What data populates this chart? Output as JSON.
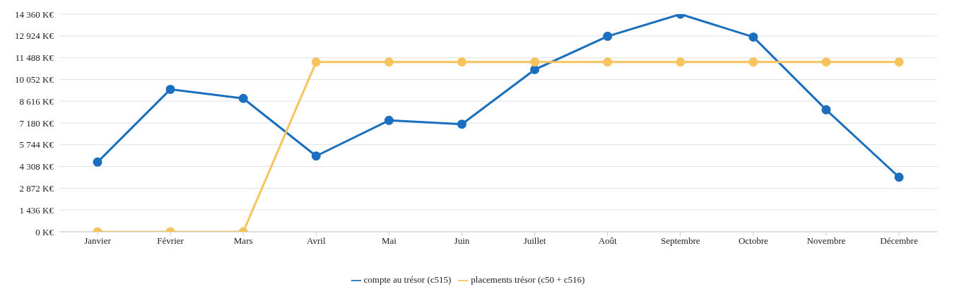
{
  "chart_data": {
    "type": "line",
    "categories": [
      "Janvier",
      "Février",
      "Mars",
      "Avril",
      "Mai",
      "Juin",
      "Juillet",
      "Août",
      "Septembre",
      "Octobre",
      "Novembre",
      "Décembre"
    ],
    "series": [
      {
        "name": "compte au trésor (c515)",
        "color": "#1a6fbf",
        "values": [
          4600,
          9400,
          8800,
          5000,
          7350,
          7100,
          10700,
          12900,
          14360,
          12850,
          8050,
          3600
        ]
      },
      {
        "name": "placements trésor (c50 + c516)",
        "color": "#f7c35c",
        "values": [
          0,
          0,
          0,
          11200,
          11200,
          11200,
          11200,
          11200,
          11200,
          11200,
          11200,
          11200
        ]
      }
    ],
    "ylim": [
      0,
      14360
    ],
    "yticks": [
      {
        "value": 0,
        "label": "0 K€"
      },
      {
        "value": 1436,
        "label": "1 436 K€"
      },
      {
        "value": 2872,
        "label": "2 872 K€"
      },
      {
        "value": 4308,
        "label": "4 308 K€"
      },
      {
        "value": 5744,
        "label": "5 744 K€"
      },
      {
        "value": 7180,
        "label": "7 180 K€"
      },
      {
        "value": 8616,
        "label": "8 616 K€"
      },
      {
        "value": 10052,
        "label": "10 052 K€"
      },
      {
        "value": 11488,
        "label": "11 488 K€"
      },
      {
        "value": 12924,
        "label": "12 924 K€"
      },
      {
        "value": 14360,
        "label": "14 360 K€"
      }
    ],
    "grid": "y",
    "legend": "bottom",
    "marker": "circle",
    "line_style": "solid"
  }
}
